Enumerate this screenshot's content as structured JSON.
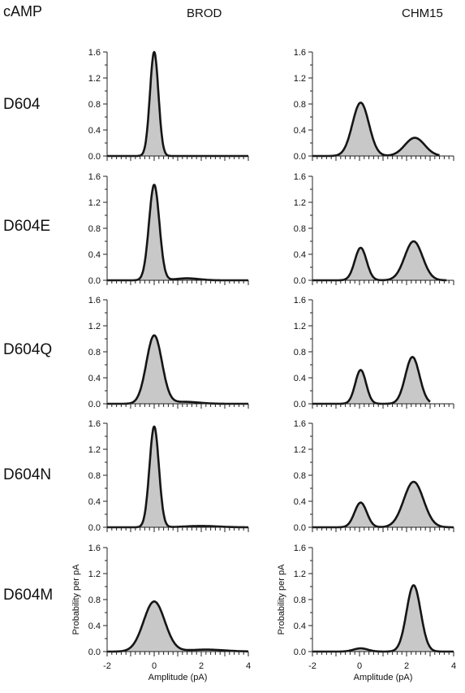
{
  "figure_label": "cAMP",
  "columns": [
    "BROD",
    "CHM15"
  ],
  "rows": [
    "D604",
    "D604E",
    "D604Q",
    "D604N",
    "D604M"
  ],
  "xlabel": "Amplitude (pA)",
  "ylabel": "Probability per pA",
  "x_ticks": [
    "-2",
    "0",
    "2",
    "4"
  ],
  "y_ticks": [
    "0.0",
    "0.4",
    "0.8",
    "1.2",
    "1.6"
  ],
  "colors": {
    "histogram_fill": "#c8c8c8",
    "fit_line": "#151515",
    "axis": "#222222"
  },
  "chart_data": [
    {
      "type": "area",
      "row": "D604",
      "column": "BROD",
      "xlim": [
        -2,
        4
      ],
      "ylim": [
        0,
        1.6
      ],
      "x_range": [
        -2.0,
        4.0
      ],
      "components": [
        {
          "mean": 0.0,
          "sd": 0.18,
          "peak": 1.6
        }
      ]
    },
    {
      "type": "area",
      "row": "D604",
      "column": "CHM15",
      "xlim": [
        -2,
        4
      ],
      "ylim": [
        0,
        1.6
      ],
      "x_range": [
        -2.0,
        3.4
      ],
      "components": [
        {
          "mean": 0.05,
          "sd": 0.35,
          "peak": 0.82
        },
        {
          "mean": 2.35,
          "sd": 0.42,
          "peak": 0.28
        }
      ]
    },
    {
      "type": "area",
      "row": "D604E",
      "column": "BROD",
      "xlim": [
        -2,
        4
      ],
      "ylim": [
        0,
        1.6
      ],
      "x_range": [
        -2.0,
        4.0
      ],
      "components": [
        {
          "mean": 0.0,
          "sd": 0.22,
          "peak": 1.47
        },
        {
          "mean": 1.4,
          "sd": 0.5,
          "peak": 0.03
        }
      ]
    },
    {
      "type": "area",
      "row": "D604E",
      "column": "CHM15",
      "xlim": [
        -2,
        4
      ],
      "ylim": [
        0,
        1.6
      ],
      "x_range": [
        -2.0,
        3.7
      ],
      "components": [
        {
          "mean": 0.05,
          "sd": 0.25,
          "peak": 0.5
        },
        {
          "mean": 2.3,
          "sd": 0.38,
          "peak": 0.6
        }
      ]
    },
    {
      "type": "area",
      "row": "D604Q",
      "column": "BROD",
      "xlim": [
        -2,
        4
      ],
      "ylim": [
        0,
        1.6
      ],
      "x_range": [
        -2.0,
        4.0
      ],
      "components": [
        {
          "mean": 0.0,
          "sd": 0.33,
          "peak": 1.05
        },
        {
          "mean": 1.3,
          "sd": 0.6,
          "peak": 0.03
        }
      ]
    },
    {
      "type": "area",
      "row": "D604Q",
      "column": "CHM15",
      "xlim": [
        -2,
        4
      ],
      "ylim": [
        0,
        1.6
      ],
      "x_range": [
        -2.0,
        3.0
      ],
      "components": [
        {
          "mean": 0.05,
          "sd": 0.23,
          "peak": 0.52
        },
        {
          "mean": 2.25,
          "sd": 0.3,
          "peak": 0.72
        }
      ]
    },
    {
      "type": "area",
      "row": "D604N",
      "column": "BROD",
      "xlim": [
        -2,
        4
      ],
      "ylim": [
        0,
        1.6
      ],
      "x_range": [
        -2.0,
        4.0
      ],
      "components": [
        {
          "mean": 0.0,
          "sd": 0.2,
          "peak": 1.55
        },
        {
          "mean": 2.0,
          "sd": 0.7,
          "peak": 0.02
        }
      ]
    },
    {
      "type": "area",
      "row": "D604N",
      "column": "CHM15",
      "xlim": [
        -2,
        4
      ],
      "ylim": [
        0,
        1.6
      ],
      "x_range": [
        -2.0,
        4.0
      ],
      "components": [
        {
          "mean": 0.05,
          "sd": 0.26,
          "peak": 0.38
        },
        {
          "mean": 2.3,
          "sd": 0.42,
          "peak": 0.7
        }
      ]
    },
    {
      "type": "area",
      "row": "D604M",
      "column": "BROD",
      "xlim": [
        -2,
        4
      ],
      "ylim": [
        0,
        1.6
      ],
      "x_range": [
        -2.0,
        4.0
      ],
      "components": [
        {
          "mean": 0.0,
          "sd": 0.45,
          "peak": 0.77
        },
        {
          "mean": 2.2,
          "sd": 0.8,
          "peak": 0.03
        }
      ]
    },
    {
      "type": "area",
      "row": "D604M",
      "column": "CHM15",
      "xlim": [
        -2,
        4
      ],
      "ylim": [
        0,
        1.6
      ],
      "x_range": [
        -2.0,
        4.0
      ],
      "components": [
        {
          "mean": 0.05,
          "sd": 0.3,
          "peak": 0.05
        },
        {
          "mean": 2.3,
          "sd": 0.3,
          "peak": 1.02
        }
      ]
    }
  ]
}
